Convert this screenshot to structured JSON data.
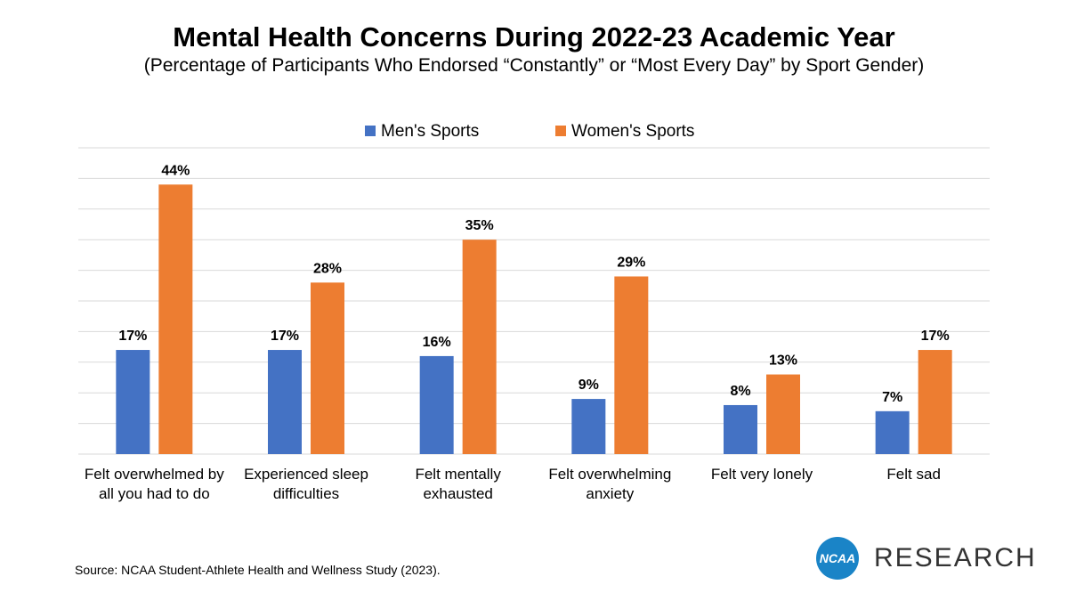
{
  "title": "Mental Health Concerns During 2022-23 Academic Year",
  "subtitle": "(Percentage of Participants Who Endorsed “Constantly” or “Most Every Day” by Sport Gender)",
  "source": "Source: NCAA Student-Athlete Health and Wellness Study (2023).",
  "brand": {
    "logo_text": "NCAA",
    "word": "RESEARCH",
    "logo_color": "#1a84c7"
  },
  "colors": {
    "men": "#4472c4",
    "women": "#ed7d31",
    "grid": "#d9d9d9"
  },
  "chart_data": {
    "type": "bar",
    "categories": [
      [
        "Felt overwhelmed by",
        "all you had to do"
      ],
      [
        "Experienced sleep",
        "difficulties"
      ],
      [
        "Felt mentally",
        "exhausted"
      ],
      [
        "Felt overwhelming",
        "anxiety"
      ],
      [
        "Felt very lonely"
      ],
      [
        "Felt sad"
      ]
    ],
    "series": [
      {
        "name": "Men's Sports",
        "values": [
          17,
          17,
          16,
          9,
          8,
          7
        ],
        "color": "#4472c4"
      },
      {
        "name": "Women's Sports",
        "values": [
          44,
          28,
          35,
          29,
          13,
          17
        ],
        "color": "#ed7d31"
      }
    ],
    "value_suffix": "%",
    "ylim": [
      0,
      50
    ],
    "grid": true,
    "y_tick_labels": false,
    "legend": "top-center"
  }
}
